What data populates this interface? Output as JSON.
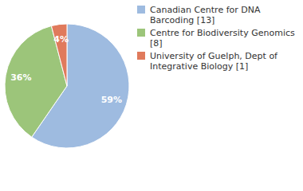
{
  "chart_data": {
    "type": "pie",
    "categories": [
      "Canadian Centre for DNA Barcoding [13]",
      "Centre for Biodiversity Genomics [8]",
      "University of Guelph, Dept of Integrative Biology [1]"
    ],
    "values": [
      59,
      36,
      4
    ],
    "value_labels": [
      "59%",
      "36%",
      "4%"
    ],
    "data_labels": true,
    "colors": [
      "#9ebbe0",
      "#9cc57a",
      "#e07a5c"
    ],
    "legend": "upper right"
  }
}
